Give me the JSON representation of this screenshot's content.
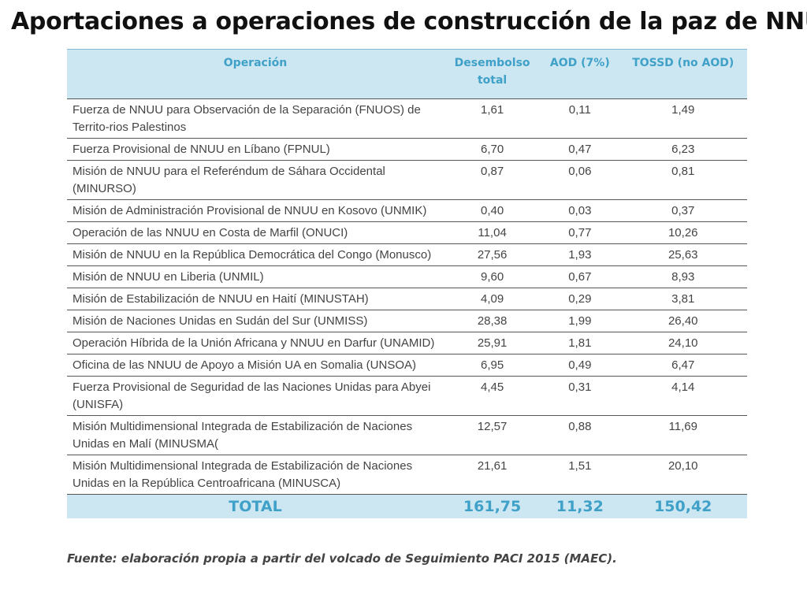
{
  "title": "Aportaciones a operaciones de construcción de la paz de NNUU",
  "table": {
    "headers": {
      "operation": "Operación",
      "disbursement_line1": "Desembolso",
      "disbursement_line2": "total",
      "aod": "AOD (7%)",
      "tossd": "TOSSD (no AOD)"
    },
    "rows": [
      {
        "operation": "Fuerza de NNUU para Observación de la Separación (FNUOS) de Territo-rios Palestinos",
        "total": "1,61",
        "aod": "0,11",
        "tossd": "1,49"
      },
      {
        "operation": "Fuerza Provisional de NNUU en Líbano (FPNUL)",
        "total": "6,70",
        "aod": "0,47",
        "tossd": "6,23"
      },
      {
        "operation": "Misión de NNUU para el Referéndum de Sáhara Occidental (MINURSO)",
        "total": "0,87",
        "aod": "0,06",
        "tossd": "0,81"
      },
      {
        "operation": "Misión de Administración Provisional de NNUU en Kosovo (UNMIK)",
        "total": "0,40",
        "aod": "0,03",
        "tossd": "0,37"
      },
      {
        "operation": "Operación de las NNUU en Costa de Marfil (ONUCI)",
        "total": "11,04",
        "aod": "0,77",
        "tossd": "10,26"
      },
      {
        "operation": "Misión de NNUU en la República Democrática del Congo (Monusco)",
        "total": "27,56",
        "aod": "1,93",
        "tossd": "25,63"
      },
      {
        "operation": "Misión de NNUU en Liberia (UNMIL)",
        "total": "9,60",
        "aod": "0,67",
        "tossd": "8,93"
      },
      {
        "operation": "Misión de Estabilización de NNUU en Haití (MINUSTAH)",
        "total": "4,09",
        "aod": "0,29",
        "tossd": "3,81"
      },
      {
        "operation": "Misión de Naciones Unidas en Sudán del Sur (UNMISS)",
        "total": "28,38",
        "aod": "1,99",
        "tossd": "26,40"
      },
      {
        "operation": "Operación Híbrida de la Unión Africana y NNUU en Darfur (UNAMID)",
        "total": "25,91",
        "aod": "1,81",
        "tossd": "24,10"
      },
      {
        "operation": "Oficina de las NNUU de Apoyo a Misión UA en Somalia (UNSOA)",
        "total": "6,95",
        "aod": "0,49",
        "tossd": "6,47"
      },
      {
        "operation": "Fuerza Provisional de Seguridad de las Naciones Unidas para Abyei (UNISFA)",
        "total": "4,45",
        "aod": "0,31",
        "tossd": "4,14"
      },
      {
        "operation": "Misión Multidimensional Integrada de Estabilización de Naciones Unidas en Malí (MINUSMA(",
        "total": "12,57",
        "aod": "0,88",
        "tossd": "11,69"
      },
      {
        "operation": "Misión Multidimensional Integrada de Estabilización de Naciones Unidas en la República Centroafricana (MINUSCA)",
        "total": "21,61",
        "aod": "1,51",
        "tossd": "20,10"
      }
    ],
    "footer": {
      "label": "TOTAL",
      "total": "161,75",
      "aod": "11,32",
      "tossd": "150,42"
    }
  },
  "source": "Fuente: elaboración propia a partir del volcado de Seguimiento PACI 2015 (MAEC).",
  "colors": {
    "header_bg": "#cde7f2",
    "header_text": "#3fa0c8"
  }
}
